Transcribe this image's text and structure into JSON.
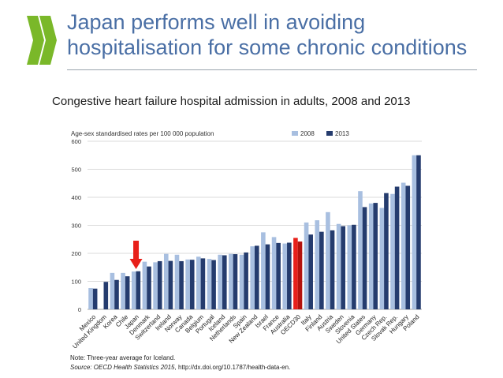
{
  "slide": {
    "title_line1": "Japan performs well in avoiding",
    "title_line2": "hospitalisation for some chronic conditions"
  },
  "logo": {
    "icon": "oecd-chevrons-logo",
    "color": "#7ab829"
  },
  "chart_title": "Congestive heart failure hospital admission in adults, 2008 and 2013",
  "note": "Note: Three-year average for Iceland.",
  "source": {
    "label": "Source: OECD Health Statistics 2015",
    "rest": ", http://dx.doi.org/10.1787/health-data-en."
  },
  "chart_data": {
    "type": "bar",
    "title": "Congestive heart failure hospital admission in adults, 2008 and 2013",
    "ylabel": "Age-sex standardised rates per 100 000 population",
    "xlabel": "",
    "ylim": [
      0,
      600
    ],
    "yticks": [
      0,
      100,
      200,
      300,
      400,
      500,
      600
    ],
    "legend_position": "top-right",
    "grid": true,
    "categories": [
      "Mexico",
      "United Kingdom",
      "Korea",
      "Chile",
      "Japan",
      "Denmark",
      "Switzerland",
      "Ireland",
      "Norway",
      "Canada",
      "Belgium",
      "Portugal",
      "Iceland",
      "Netherlands",
      "Spain",
      "New Zealand",
      "Israel",
      "France",
      "Australia",
      "OECD30",
      "Italy",
      "Finland",
      "Austria",
      "Sweden",
      "Slovenia",
      "United States",
      "Germany",
      "Czech Rep.",
      "Slovak Rep.",
      "Hungary",
      "Poland"
    ],
    "series": [
      {
        "name": "2008",
        "color": "#a8bfe0",
        "values": [
          76,
          null,
          130,
          130,
          135,
          170,
          168,
          198,
          195,
          178,
          188,
          180,
          195,
          198,
          195,
          225,
          275,
          258,
          235,
          255,
          310,
          318,
          347,
          305,
          300,
          422,
          378,
          362,
          412,
          452,
          550
        ]
      },
      {
        "name": "2013",
        "color": "#253c6e",
        "values": [
          74,
          98,
          105,
          118,
          136,
          153,
          172,
          173,
          172,
          177,
          182,
          176,
          193,
          197,
          203,
          227,
          232,
          237,
          238,
          242,
          267,
          277,
          282,
          297,
          302,
          365,
          380,
          415,
          438,
          441,
          550
        ]
      }
    ],
    "highlights": [
      {
        "category": "Japan",
        "kind": "arrow",
        "color": "#e8201a"
      },
      {
        "category": "OECD30",
        "kind": "bars",
        "color": "#e8201a"
      }
    ]
  }
}
